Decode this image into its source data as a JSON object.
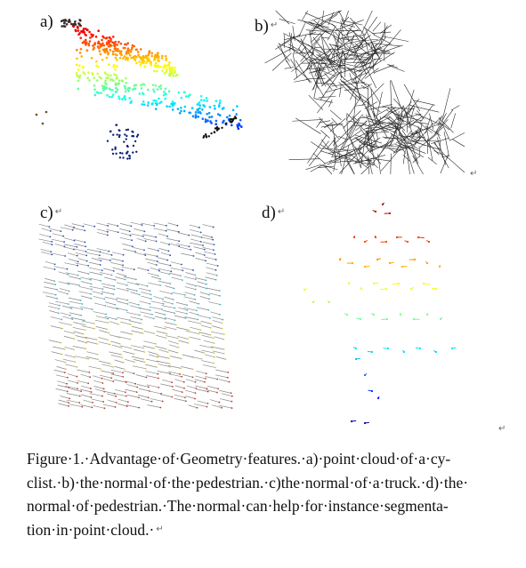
{
  "figure": {
    "panels": [
      {
        "id": "a",
        "label": "a)",
        "mark": "",
        "content": "point cloud of a cyclist, colored by height"
      },
      {
        "id": "b",
        "label": "b)",
        "mark": "↵",
        "content": "surface normals of the pedestrian"
      },
      {
        "id": "c",
        "label": "c)",
        "mark": "↵",
        "content": "surface normals of a truck"
      },
      {
        "id": "d",
        "label": "d)",
        "mark": "↵",
        "content": "surface normals of a pedestrian, colored by height"
      }
    ],
    "paragraph_marks": {
      "b_end": "↵",
      "d_end": "↵",
      "caption_end": "↵"
    },
    "caption": {
      "lines": [
        "Figure·1.·Advantage·of·Geometry·features.·a)·point·cloud·of·a·cy-",
        "clist.·b)·the·normal·of·the·pedestrian.·c)the·normal·of·a·truck.·d)·the·",
        "normal·of·pedestrian.·The·normal·can·help·for·instance·segmenta-",
        "tion·in·point·cloud.·"
      ],
      "end_mark": "↵"
    },
    "colors": {
      "text": "#111111",
      "mark": "#666666",
      "normals": "#555555"
    }
  }
}
